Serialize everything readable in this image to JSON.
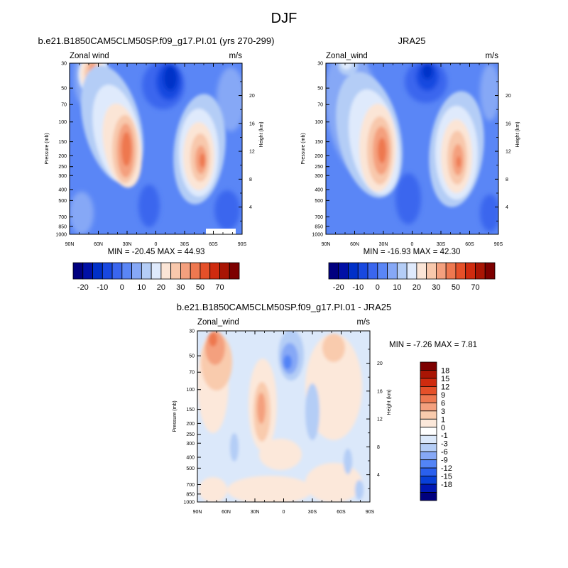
{
  "figure": {
    "title": "DJF"
  },
  "chart_data": [
    {
      "type": "heatmap",
      "title": "b.e21.B1850CAM5CLM50SP.f09_g17.PI.01 (yrs 270-299)",
      "left_label": "Zonal wind",
      "right_label": "m/s",
      "xlabel": "",
      "ylabel": "Pressure (mb)",
      "y2label": "Height (km)",
      "x_ticks": [
        "90N",
        "60N",
        "30N",
        "0",
        "30S",
        "60S",
        "90S"
      ],
      "y_ticks": [
        "30",
        "50",
        "70",
        "100",
        "150",
        "200",
        "250",
        "300",
        "400",
        "500",
        "700",
        "850",
        "1000"
      ],
      "y2_ticks": [
        "20",
        "16",
        "12",
        "8",
        "4"
      ],
      "stats": "MIN = -20.45  MAX =  44.93",
      "min": -20.45,
      "max": 44.93,
      "colorbar_levels": [
        "-20",
        "-10",
        "0",
        "10",
        "20",
        "30",
        "50",
        "70"
      ]
    },
    {
      "type": "heatmap",
      "title": "JRA25",
      "left_label": "Zonal_wind",
      "right_label": "m/s",
      "xlabel": "",
      "ylabel": "Pressure (mb)",
      "y2label": "Height (km)",
      "x_ticks": [
        "90N",
        "60N",
        "30N",
        "0",
        "30S",
        "60S",
        "90S"
      ],
      "y_ticks": [
        "30",
        "50",
        "70",
        "100",
        "150",
        "200",
        "250",
        "300",
        "400",
        "500",
        "700",
        "850",
        "1000"
      ],
      "y2_ticks": [
        "20",
        "16",
        "12",
        "8",
        "4"
      ],
      "stats": "MIN = -16.93  MAX =  42.30",
      "min": -16.93,
      "max": 42.3,
      "colorbar_levels": [
        "-20",
        "-10",
        "0",
        "10",
        "20",
        "30",
        "50",
        "70"
      ]
    },
    {
      "type": "heatmap",
      "title": "b.e21.B1850CAM5CLM50SP.f09_g17.PI.01 - JRA25",
      "left_label": "Zonal_wind",
      "right_label": "m/s",
      "xlabel": "",
      "ylabel": "Pressure (mb)",
      "y2label": "Height (km)",
      "x_ticks": [
        "90N",
        "60N",
        "30N",
        "0",
        "30S",
        "60S",
        "90S"
      ],
      "y_ticks": [
        "30",
        "50",
        "70",
        "100",
        "150",
        "200",
        "250",
        "300",
        "400",
        "500",
        "700",
        "850",
        "1000"
      ],
      "y2_ticks": [
        "20",
        "16",
        "12",
        "8",
        "4"
      ],
      "stats": "MIN =  -7.26  MAX =   7.81",
      "min": -7.26,
      "max": 7.81,
      "colorbar_levels": [
        "18",
        "15",
        "12",
        "9",
        "6",
        "3",
        "1",
        "0",
        "-1",
        "-3",
        "-6",
        "-9",
        "-12",
        "-15",
        "-18"
      ]
    }
  ],
  "colors": {
    "full_palette": [
      "#00007f",
      "#0010a6",
      "#0030c8",
      "#1848e0",
      "#3a66ee",
      "#5a86f6",
      "#86a8f6",
      "#b4cdf6",
      "#dfeafc",
      "#fbe5d6",
      "#f8c8ac",
      "#f4a07e",
      "#ee7850",
      "#e55029",
      "#cf2b0f",
      "#a91504",
      "#7d0000"
    ],
    "diff_palette": [
      "#00007f",
      "#0018b4",
      "#0840d8",
      "#2a60ee",
      "#5384f6",
      "#86a8f6",
      "#b4cdf6",
      "#dbe8fa",
      "#ffffff",
      "#fce8da",
      "#f9cbad",
      "#f4a07e",
      "#ee7850",
      "#e55029",
      "#cf2b0f",
      "#a91504",
      "#7d0000"
    ]
  }
}
